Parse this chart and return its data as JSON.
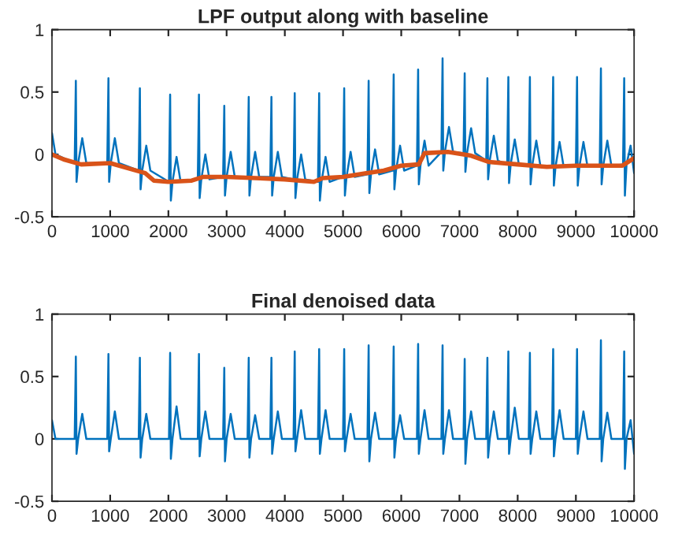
{
  "chart_data": [
    {
      "type": "line",
      "title": "LPF output along with baseline",
      "xlim": [
        0,
        10000
      ],
      "xticks": [
        0,
        1000,
        2000,
        3000,
        4000,
        5000,
        6000,
        7000,
        8000,
        9000,
        10000
      ],
      "ylim": [
        -0.5,
        1
      ],
      "yticks": [
        -0.5,
        0,
        0.5,
        1
      ],
      "grid": false,
      "series": [
        {
          "color": "#0072bd",
          "x": [
            0,
            60,
            390,
            410,
            422,
            450,
            520,
            590,
            950,
            970,
            982,
            1010,
            1080,
            1150,
            1490,
            1510,
            1522,
            1550,
            1620,
            1690,
            2010,
            2030,
            2042,
            2070,
            2140,
            2210,
            2505,
            2525,
            2537,
            2565,
            2635,
            2705,
            2940,
            2960,
            2972,
            3000,
            3070,
            3140,
            3360,
            3380,
            3392,
            3420,
            3490,
            3560,
            3750,
            3770,
            3782,
            3810,
            3880,
            3950,
            4150,
            4170,
            4182,
            4210,
            4280,
            4350,
            4570,
            4590,
            4602,
            4630,
            4700,
            4770,
            5000,
            5020,
            5032,
            5060,
            5130,
            5200,
            5420,
            5440,
            5452,
            5480,
            5550,
            5620,
            5850,
            5870,
            5882,
            5910,
            5980,
            6050,
            6270,
            6290,
            6302,
            6330,
            6400,
            6470,
            6690,
            6710,
            6722,
            6750,
            6820,
            6890,
            7070,
            7090,
            7102,
            7130,
            7200,
            7270,
            7460,
            7480,
            7492,
            7520,
            7590,
            7660,
            7820,
            7840,
            7852,
            7880,
            7950,
            8020,
            8190,
            8210,
            8222,
            8250,
            8320,
            8390,
            8590,
            8610,
            8622,
            8650,
            8720,
            8790,
            9000,
            9020,
            9032,
            9060,
            9130,
            9200,
            9410,
            9430,
            9442,
            9470,
            9540,
            9610,
            9810,
            9830,
            9842,
            9870,
            9940,
            10000
          ],
          "values": [
            0.17,
            0.0,
            -0.07,
            0.59,
            -0.22,
            -0.07,
            0.13,
            -0.07,
            -0.07,
            0.61,
            -0.22,
            -0.07,
            0.13,
            -0.07,
            -0.13,
            0.53,
            -0.28,
            -0.13,
            0.07,
            -0.13,
            -0.22,
            0.48,
            -0.37,
            -0.22,
            -0.02,
            -0.22,
            -0.2,
            0.48,
            -0.35,
            -0.2,
            0.0,
            -0.2,
            -0.18,
            0.39,
            -0.33,
            -0.18,
            0.02,
            -0.18,
            -0.18,
            0.46,
            -0.33,
            -0.18,
            0.02,
            -0.18,
            -0.18,
            0.46,
            -0.33,
            -0.18,
            0.02,
            -0.18,
            -0.2,
            0.49,
            -0.35,
            -0.2,
            0.0,
            -0.2,
            -0.22,
            0.49,
            -0.37,
            -0.22,
            -0.02,
            -0.22,
            -0.18,
            0.53,
            -0.33,
            -0.18,
            0.02,
            -0.18,
            -0.16,
            0.59,
            -0.31,
            -0.16,
            0.04,
            -0.16,
            -0.13,
            0.64,
            -0.28,
            -0.13,
            0.07,
            -0.13,
            -0.09,
            0.68,
            -0.24,
            -0.09,
            0.11,
            -0.09,
            0.02,
            0.77,
            -0.13,
            0.02,
            0.22,
            0.02,
            0.01,
            0.65,
            -0.14,
            0.01,
            0.21,
            0.01,
            -0.05,
            0.61,
            -0.2,
            -0.05,
            0.15,
            -0.05,
            -0.08,
            0.62,
            -0.23,
            -0.08,
            0.12,
            -0.08,
            -0.09,
            0.62,
            -0.24,
            -0.09,
            0.11,
            -0.09,
            -0.1,
            0.62,
            -0.25,
            -0.1,
            0.1,
            -0.1,
            -0.1,
            0.62,
            -0.25,
            -0.1,
            0.1,
            -0.1,
            -0.09,
            0.69,
            -0.24,
            -0.09,
            0.11,
            -0.09,
            -0.08,
            0.61,
            -0.33,
            -0.08,
            0.07,
            -0.15
          ]
        },
        {
          "color": "#d95319",
          "x": [
            0,
            200,
            500,
            1000,
            1300,
            1600,
            1750,
            2000,
            2400,
            2600,
            3000,
            3500,
            4000,
            4500,
            4650,
            5000,
            5400,
            5700,
            6000,
            6300,
            6400,
            6800,
            7200,
            7500,
            8000,
            8500,
            9000,
            9500,
            9800,
            10000
          ],
          "values": [
            0.0,
            -0.04,
            -0.08,
            -0.07,
            -0.11,
            -0.15,
            -0.21,
            -0.22,
            -0.21,
            -0.18,
            -0.18,
            -0.19,
            -0.2,
            -0.22,
            -0.19,
            -0.18,
            -0.15,
            -0.13,
            -0.09,
            -0.08,
            0.01,
            0.02,
            -0.01,
            -0.06,
            -0.08,
            -0.1,
            -0.09,
            -0.09,
            -0.09,
            -0.03
          ]
        }
      ]
    },
    {
      "type": "line",
      "title": "Final denoised data",
      "xlim": [
        0,
        10000
      ],
      "xticks": [
        0,
        1000,
        2000,
        3000,
        4000,
        5000,
        6000,
        7000,
        8000,
        9000,
        10000
      ],
      "ylim": [
        -0.5,
        1
      ],
      "yticks": [
        -0.5,
        0,
        0.5,
        1
      ],
      "grid": false,
      "series": [
        {
          "color": "#0072bd",
          "x": [
            0,
            60,
            390,
            410,
            422,
            450,
            520,
            590,
            950,
            970,
            982,
            1010,
            1080,
            1150,
            1490,
            1510,
            1522,
            1550,
            1620,
            1690,
            2010,
            2030,
            2042,
            2070,
            2140,
            2210,
            2505,
            2525,
            2537,
            2565,
            2635,
            2705,
            2940,
            2960,
            2972,
            3000,
            3070,
            3140,
            3360,
            3380,
            3392,
            3420,
            3490,
            3560,
            3750,
            3770,
            3782,
            3810,
            3880,
            3950,
            4150,
            4170,
            4182,
            4210,
            4280,
            4350,
            4570,
            4590,
            4602,
            4630,
            4700,
            4770,
            5000,
            5020,
            5032,
            5060,
            5130,
            5200,
            5420,
            5440,
            5452,
            5480,
            5550,
            5620,
            5850,
            5870,
            5882,
            5910,
            5980,
            6050,
            6270,
            6290,
            6302,
            6330,
            6400,
            6470,
            6690,
            6710,
            6722,
            6750,
            6820,
            6890,
            7070,
            7090,
            7102,
            7130,
            7200,
            7270,
            7460,
            7480,
            7492,
            7520,
            7590,
            7660,
            7820,
            7840,
            7852,
            7880,
            7950,
            8020,
            8190,
            8210,
            8222,
            8250,
            8320,
            8390,
            8590,
            8610,
            8622,
            8650,
            8720,
            8790,
            9000,
            9020,
            9032,
            9060,
            9130,
            9200,
            9410,
            9430,
            9442,
            9470,
            9540,
            9610,
            9810,
            9830,
            9842,
            9870,
            9940,
            10000
          ],
          "values": [
            0.15,
            0.0,
            0.0,
            0.66,
            -0.12,
            0.0,
            0.2,
            0.0,
            0.0,
            0.68,
            -0.1,
            0.0,
            0.22,
            0.0,
            0.0,
            0.65,
            -0.15,
            0.0,
            0.2,
            0.0,
            0.0,
            0.69,
            -0.16,
            0.0,
            0.26,
            0.0,
            0.0,
            0.68,
            -0.14,
            0.0,
            0.22,
            0.0,
            0.0,
            0.57,
            -0.18,
            0.0,
            0.2,
            0.0,
            0.0,
            0.65,
            -0.15,
            0.0,
            0.19,
            0.0,
            0.0,
            0.65,
            -0.12,
            0.0,
            0.22,
            0.0,
            0.0,
            0.7,
            -0.1,
            0.0,
            0.23,
            0.0,
            0.0,
            0.72,
            -0.12,
            0.0,
            0.23,
            0.0,
            0.0,
            0.72,
            -0.1,
            0.0,
            0.2,
            0.0,
            0.0,
            0.75,
            -0.18,
            0.0,
            0.21,
            0.0,
            0.0,
            0.74,
            -0.15,
            0.0,
            0.19,
            0.0,
            0.0,
            0.76,
            -0.12,
            0.0,
            0.23,
            0.0,
            0.0,
            0.75,
            -0.12,
            0.0,
            0.23,
            0.0,
            0.0,
            0.64,
            -0.2,
            0.0,
            0.22,
            0.0,
            0.0,
            0.65,
            -0.15,
            0.0,
            0.22,
            0.0,
            0.0,
            0.7,
            -0.12,
            0.0,
            0.25,
            0.0,
            0.0,
            0.69,
            -0.12,
            0.0,
            0.22,
            0.0,
            0.0,
            0.72,
            -0.14,
            0.0,
            0.23,
            0.0,
            0.0,
            0.72,
            -0.12,
            0.0,
            0.22,
            0.0,
            0.0,
            0.79,
            -0.18,
            0.0,
            0.21,
            0.0,
            0.0,
            0.7,
            -0.24,
            0.0,
            0.15,
            -0.12
          ]
        }
      ]
    }
  ]
}
